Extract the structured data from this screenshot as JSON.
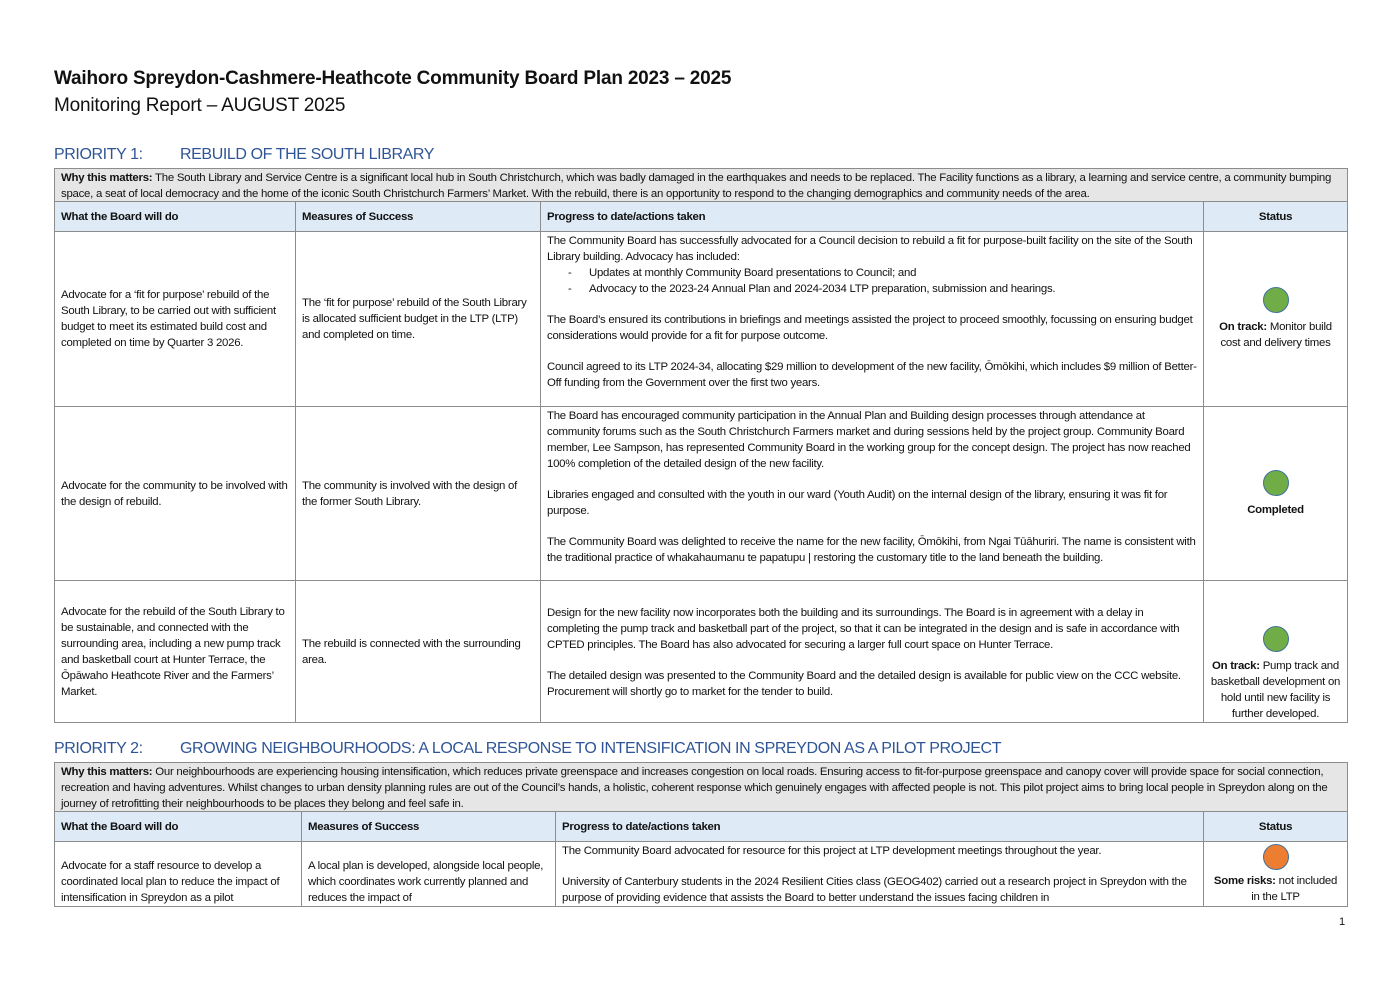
{
  "document": {
    "title": "Waihoro Spreydon-Cashmere-Heathcote Community Board Plan 2023 – 2025",
    "subtitle": "Monitoring Report – AUGUST 2025",
    "page_number": "1"
  },
  "colors": {
    "on_track": "#70ad47",
    "some_risks": "#ed7d31",
    "heading": "#2f5597",
    "header_fill": "#deeaf6"
  },
  "priority1": {
    "number": "PRIORITY 1:",
    "title": "REBUILD OF THE SOUTH LIBRARY",
    "why_label": "Why this matters:",
    "why_text": " The South Library and Service Centre is a significant local hub in South Christchurch, which was badly damaged in the earthquakes and needs to be replaced. The Facility functions as a library, a learning and service centre, a community bumping space, a seat of local democracy and the home of the iconic South Christchurch Farmers’ Market. With the rebuild, there is an opportunity to respond to the changing demographics and community needs of the area.",
    "columns": [
      "What the Board will do",
      "Measures of Success",
      "Progress to date/actions taken",
      "Status"
    ],
    "rows": [
      {
        "action": "Advocate for a ‘fit for purpose’ rebuild of the South Library, to be carried out with sufficient budget to meet its estimated build cost and completed on time by Quarter 3 2026.",
        "measure": "The ‘fit for purpose’ rebuild of the South Library is allocated sufficient budget in the LTP (LTP) and completed on time.",
        "progress_intro": "The Community Board has successfully advocated for a Council decision to rebuild a fit for purpose-built facility on the site of the South Library building. Advocacy has included:",
        "progress_bullets": [
          "Updates at monthly Community Board presentations to Council; and",
          "Advocacy to the 2023-24 Annual Plan and 2024-2034 LTP preparation, submission and hearings."
        ],
        "progress_paras": [
          "The Board’s ensured its contributions in briefings and meetings assisted the project to proceed smoothly, focussing on ensuring budget considerations would provide for a fit for purpose outcome.",
          "Council agreed to its LTP 2024-34, allocating $29 million to development of the new facility, Ōmōkihi, which includes $9 million of Better-Off funding from the Government over the first two years."
        ],
        "status_color": "green",
        "status_label": "On track:",
        "status_text": " Monitor build cost and delivery times"
      },
      {
        "action": "Advocate for the community to be involved with the design of rebuild.",
        "measure": "The community is involved with the design of the former South Library.",
        "progress_paras": [
          "The Board has encouraged community participation in the Annual Plan and Building design processes through attendance at community forums such as the South Christchurch Farmers market and during sessions held by the project group. Community Board member, Lee Sampson, has represented Community Board in the working group for the concept design. The project has now reached 100% completion of the detailed design of the new facility.",
          "Libraries engaged and consulted with the youth in our ward (Youth Audit) on the internal design of the library, ensuring it was fit for purpose.",
          "The Community Board was delighted to receive the name for the new facility, Ōmōkihi, from Ngai Tūāhuriri. The name is consistent with the traditional practice of whakahaumanu te papatupu | restoring the customary title to the land beneath the building."
        ],
        "status_color": "green",
        "status_label": "Completed",
        "status_text": ""
      },
      {
        "action": "Advocate for the rebuild of the South Library to be sustainable, and connected with the surrounding area, including a new pump track and basketball court at Hunter Terrace, the Ōpāwaho Heathcote River and the Farmers’ Market.",
        "measure": "The rebuild is connected with the surrounding area.",
        "progress_paras": [
          "Design for the new facility now incorporates both the building and its surroundings. The Board is in agreement with a delay in completing the pump track and basketball part of the project, so that it can be integrated in the design and is safe in accordance with CPTED principles.  The Board has also advocated for securing a larger full court space on Hunter Terrace.",
          "The detailed design was presented to the Community Board and the detailed design is available for public view on the CCC website. Procurement will shortly go to market for the tender to build."
        ],
        "status_color": "green",
        "status_label": "On track:",
        "status_text": " Pump track and basketball development on hold until new facility is further developed."
      }
    ]
  },
  "priority2": {
    "number": "PRIORITY 2:",
    "title": "GROWING NEIGHBOURHOODS: A LOCAL RESPONSE TO INTENSIFICATION IN SPREYDON AS A PILOT PROJECT",
    "why_label": "Why this matters:",
    "why_text": "  Our neighbourhoods are experiencing housing intensification, which reduces private greenspace and increases congestion on local roads. Ensuring access to fit-for-purpose greenspace and canopy cover will provide space for social connection, recreation and having adventures. Whilst changes to urban density planning rules are out of the Council’s hands, a holistic, coherent response which genuinely engages with affected people is not. This pilot project aims to bring local people in Spreydon along on the journey of retrofitting their neighbourhoods to be places they belong and feel safe in.",
    "columns": [
      "What the Board will do",
      "Measures of Success",
      "Progress to date/actions taken",
      "Status"
    ],
    "rows": [
      {
        "action": "Advocate for a staff resource to develop a coordinated local plan to reduce the impact of intensification in Spreydon as a pilot",
        "measure": "A local plan is developed, alongside local people, which coordinates work currently planned and reduces the impact of",
        "progress_paras": [
          "The Community Board advocated for resource for this project at LTP development meetings throughout the year.",
          "University of Canterbury students in the 2024 Resilient Cities class (GEOG402) carried out a research project in Spreydon with the purpose of providing evidence that assists the Board to better understand the issues facing children in"
        ],
        "status_color": "orange",
        "status_label": "Some risks:",
        "status_text": " not included in the LTP"
      }
    ]
  }
}
